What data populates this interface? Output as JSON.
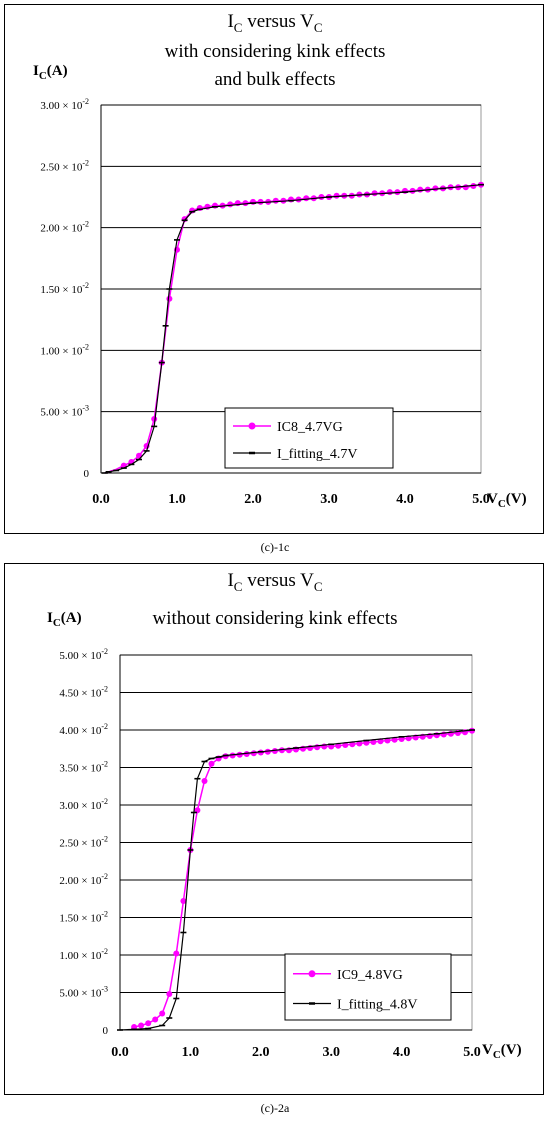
{
  "chart_data": [
    {
      "type": "line",
      "title_main": "I",
      "title_sub1": "C",
      "title_mid": " versus V",
      "title_sub2": "C",
      "subtitle1": "with considering kink effects",
      "subtitle2": "and bulk effects",
      "ylabel_main": "I",
      "ylabel_sub": "C",
      "ylabel_unit": "(A)",
      "xlabel_main": "V",
      "xlabel_sub": "C",
      "xlabel_unit": "(V)",
      "xlim": [
        0,
        5
      ],
      "ylim": [
        0,
        0.03
      ],
      "x_ticks": [
        {
          "v": 0,
          "label": "0.0"
        },
        {
          "v": 1,
          "label": "1.0"
        },
        {
          "v": 2,
          "label": "2.0"
        },
        {
          "v": 3,
          "label": "3.0"
        },
        {
          "v": 4,
          "label": "4.0"
        },
        {
          "v": 5,
          "label": "5.0"
        }
      ],
      "y_ticks": [
        {
          "v": 0,
          "label": "0"
        },
        {
          "v": 0.005,
          "label": "5.00 × 10",
          "exp": "-3"
        },
        {
          "v": 0.01,
          "label": "1.00 × 10",
          "exp": "-2"
        },
        {
          "v": 0.015,
          "label": "1.50 × 10",
          "exp": "-2"
        },
        {
          "v": 0.02,
          "label": "2.00 × 10",
          "exp": "-2"
        },
        {
          "v": 0.025,
          "label": "2.50 × 10",
          "exp": "-2"
        },
        {
          "v": 0.03,
          "label": "3.00 × 10",
          "exp": "-2"
        }
      ],
      "grid": "horizontal",
      "legend_position": "bottom-right",
      "knee": {
        "x0": 0.4,
        "xk": 1.1,
        "iy0": 0.0,
        "iy1": 0.0207,
        "s1": 0.0212,
        "sx": 1.2,
        "slope": 0.000386,
        "mid": 0.82
      },
      "series": [
        {
          "name": "IC8_4.7VG",
          "color": "#ff00ff",
          "marker": "circle"
        },
        {
          "name": "I_fitting_4.7V",
          "color": "#000000",
          "marker": "dash"
        }
      ]
    },
    {
      "type": "line",
      "title_main": "I",
      "title_sub1": "C",
      "title_mid": " versus V",
      "title_sub2": "C",
      "subtitle1": "without considering kink effects",
      "subtitle2": "",
      "ylabel_main": "I",
      "ylabel_sub": "C",
      "ylabel_unit": "(A)",
      "xlabel_main": "V",
      "xlabel_sub": "C",
      "xlabel_unit": "(V)",
      "xlim": [
        0,
        5
      ],
      "ylim": [
        0,
        0.05
      ],
      "x_ticks": [
        {
          "v": 0,
          "label": "0.0"
        },
        {
          "v": 1,
          "label": "1.0"
        },
        {
          "v": 2,
          "label": "2.0"
        },
        {
          "v": 3,
          "label": "3.0"
        },
        {
          "v": 4,
          "label": "4.0"
        },
        {
          "v": 5,
          "label": "5.0"
        }
      ],
      "y_ticks": [
        {
          "v": 0,
          "label": "0"
        },
        {
          "v": 0.005,
          "label": "5.00 × 10",
          "exp": "-3"
        },
        {
          "v": 0.01,
          "label": "1.00 × 10",
          "exp": "-2"
        },
        {
          "v": 0.015,
          "label": "1.50 × 10",
          "exp": "-2"
        },
        {
          "v": 0.02,
          "label": "2.00 × 10",
          "exp": "-2"
        },
        {
          "v": 0.025,
          "label": "2.50 × 10",
          "exp": "-2"
        },
        {
          "v": 0.03,
          "label": "3.00 × 10",
          "exp": "-2"
        },
        {
          "v": 0.035,
          "label": "3.50 × 10",
          "exp": "-2"
        },
        {
          "v": 0.04,
          "label": "4.00 × 10",
          "exp": "-2"
        },
        {
          "v": 0.045,
          "label": "4.50 × 10",
          "exp": "-2"
        },
        {
          "v": 0.05,
          "label": "5.00 × 10",
          "exp": "-2"
        }
      ],
      "grid": "horizontal",
      "legend_position": "bottom-right",
      "series": [
        {
          "name": "IC9_4.8VG",
          "color": "#ff00ff",
          "marker": "circle"
        },
        {
          "name": "I_fitting_4.8V",
          "color": "#000000",
          "marker": "dash"
        }
      ]
    }
  ],
  "captions": [
    "(c)-1c",
    "(c)-2a"
  ],
  "data_points": {
    "chart1_measured_x": [
      0.05,
      0.1,
      0.2,
      0.3,
      0.4,
      0.5,
      0.6,
      0.7,
      0.8,
      0.9,
      1.0,
      1.1,
      1.2,
      1.3,
      1.4,
      1.5,
      1.6,
      1.7,
      1.8,
      1.9,
      2.0,
      2.1,
      2.2,
      2.3,
      2.4,
      2.5,
      2.6,
      2.7,
      2.8,
      2.9,
      3.0,
      3.1,
      3.2,
      3.3,
      3.4,
      3.5,
      3.6,
      3.7,
      3.8,
      3.9,
      4.0,
      4.1,
      4.2,
      4.3,
      4.4,
      4.5,
      4.6,
      4.7,
      4.8,
      4.9,
      5.0
    ],
    "chart1_measured_y": [
      0.0,
      0.0001,
      0.0003,
      0.0006,
      0.0009,
      0.0014,
      0.0022,
      0.0044,
      0.009,
      0.0142,
      0.0182,
      0.0207,
      0.0214,
      0.0216,
      0.0217,
      0.0218,
      0.0218,
      0.0219,
      0.022,
      0.022,
      0.0221,
      0.0221,
      0.0221,
      0.0222,
      0.0222,
      0.0223,
      0.0223,
      0.0224,
      0.0224,
      0.0225,
      0.0225,
      0.0226,
      0.0226,
      0.0226,
      0.0227,
      0.0227,
      0.0228,
      0.0228,
      0.0229,
      0.0229,
      0.023,
      0.023,
      0.0231,
      0.0231,
      0.0232,
      0.0232,
      0.0233,
      0.0233,
      0.0233,
      0.0234,
      0.0235
    ],
    "chart1_fit_x": [
      0.05,
      0.1,
      0.2,
      0.3,
      0.4,
      0.5,
      0.6,
      0.7,
      0.8,
      0.85,
      0.9,
      1.0,
      1.1,
      1.2,
      1.3,
      1.5,
      2.0,
      2.5,
      3.0,
      3.5,
      4.0,
      4.5,
      5.0
    ],
    "chart1_fit_y": [
      0.0,
      0.0001,
      0.0002,
      0.0004,
      0.0007,
      0.0011,
      0.0018,
      0.0038,
      0.009,
      0.012,
      0.015,
      0.019,
      0.0206,
      0.0213,
      0.0215,
      0.0217,
      0.022,
      0.0222,
      0.0225,
      0.0227,
      0.0229,
      0.0232,
      0.0235
    ],
    "chart2_measured_x": [
      0.2,
      0.3,
      0.4,
      0.5,
      0.6,
      0.7,
      0.8,
      0.9,
      1.0,
      1.1,
      1.2,
      1.3,
      1.4,
      1.5,
      1.6,
      1.7,
      1.8,
      1.9,
      2.0,
      2.1,
      2.2,
      2.3,
      2.4,
      2.5,
      2.6,
      2.7,
      2.8,
      2.9,
      3.0,
      3.1,
      3.2,
      3.3,
      3.4,
      3.5,
      3.6,
      3.7,
      3.8,
      3.9,
      4.0,
      4.1,
      4.2,
      4.3,
      4.4,
      4.5,
      4.6,
      4.7,
      4.8,
      4.9,
      5.0
    ],
    "chart2_measured_y": [
      0.0004,
      0.0006,
      0.0009,
      0.0014,
      0.0022,
      0.0048,
      0.0102,
      0.0172,
      0.024,
      0.0293,
      0.0332,
      0.0355,
      0.0362,
      0.0365,
      0.0366,
      0.0367,
      0.0368,
      0.0369,
      0.037,
      0.0371,
      0.0372,
      0.0373,
      0.0373,
      0.0374,
      0.0375,
      0.0376,
      0.0377,
      0.0378,
      0.0378,
      0.0379,
      0.038,
      0.0381,
      0.0382,
      0.0383,
      0.0384,
      0.0385,
      0.0386,
      0.0387,
      0.0388,
      0.0389,
      0.039,
      0.0391,
      0.0392,
      0.0393,
      0.0394,
      0.0395,
      0.0396,
      0.0397,
      0.0399
    ],
    "chart2_fit_x": [
      0.0,
      0.2,
      0.4,
      0.6,
      0.7,
      0.8,
      0.9,
      1.0,
      1.05,
      1.1,
      1.2,
      1.3,
      1.4,
      1.5,
      2.0,
      2.5,
      3.0,
      3.5,
      4.0,
      4.5,
      5.0
    ],
    "chart2_fit_y": [
      0.0,
      0.0001,
      0.0002,
      0.0006,
      0.0016,
      0.0042,
      0.013,
      0.024,
      0.029,
      0.0335,
      0.0358,
      0.0362,
      0.0364,
      0.0366,
      0.0371,
      0.0376,
      0.0381,
      0.0386,
      0.0391,
      0.0395,
      0.04
    ]
  }
}
